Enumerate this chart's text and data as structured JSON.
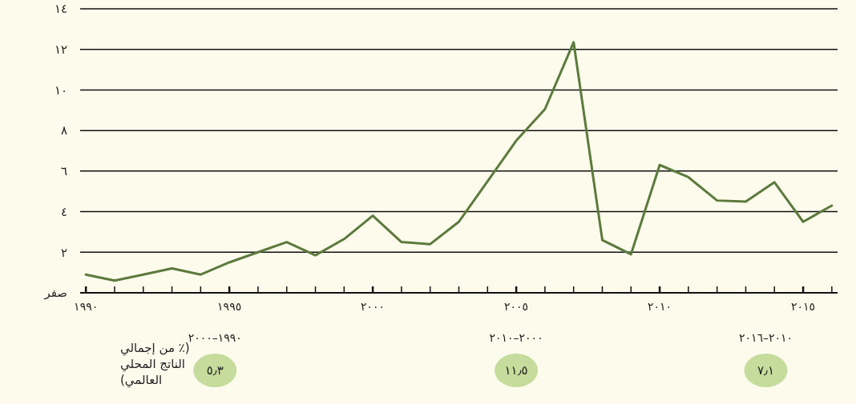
{
  "chart_data": {
    "type": "line",
    "x": [
      1990,
      1991,
      1992,
      1993,
      1994,
      1995,
      1996,
      1997,
      1998,
      1999,
      2000,
      2001,
      2002,
      2003,
      2004,
      2005,
      2006,
      2007,
      2008,
      2009,
      2010,
      2011,
      2012,
      2013,
      2014,
      2015,
      2016
    ],
    "series": [
      {
        "color": "#5b7a3c",
        "values": [
          0.9,
          0.6,
          0.9,
          1.2,
          0.9,
          1.5,
          2.0,
          2.5,
          1.85,
          2.65,
          3.8,
          2.5,
          2.4,
          3.5,
          5.5,
          7.5,
          9.05,
          12.35,
          2.6,
          1.9,
          6.3,
          5.7,
          4.55,
          4.5,
          5.45,
          3.5,
          4.3
        ]
      }
    ],
    "xlim": [
      1989.8,
      2016.2
    ],
    "xticks": [
      {
        "value": 1990,
        "label": "١٩٩٠"
      },
      {
        "value": 1991,
        "label": null
      },
      {
        "value": 1992,
        "label": null
      },
      {
        "value": 1993,
        "label": null
      },
      {
        "value": 1994,
        "label": null
      },
      {
        "value": 1995,
        "label": "١٩٩٥"
      },
      {
        "value": 1996,
        "label": null
      },
      {
        "value": 1997,
        "label": null
      },
      {
        "value": 1998,
        "label": null
      },
      {
        "value": 1999,
        "label": null
      },
      {
        "value": 2000,
        "label": "٢٠٠٠"
      },
      {
        "value": 2001,
        "label": null
      },
      {
        "value": 2002,
        "label": null
      },
      {
        "value": 2003,
        "label": null
      },
      {
        "value": 2004,
        "label": null
      },
      {
        "value": 2005,
        "label": "٢٠٠٥"
      },
      {
        "value": 2006,
        "label": null
      },
      {
        "value": 2007,
        "label": null
      },
      {
        "value": 2008,
        "label": null
      },
      {
        "value": 2009,
        "label": null
      },
      {
        "value": 2010,
        "label": "٢٠١٠"
      },
      {
        "value": 2011,
        "label": null
      },
      {
        "value": 2012,
        "label": null
      },
      {
        "value": 2013,
        "label": null
      },
      {
        "value": 2014,
        "label": null
      },
      {
        "value": 2015,
        "label": "٢٠١٥"
      },
      {
        "value": 2016,
        "label": null
      }
    ],
    "ylim": [
      0,
      14
    ],
    "yticks": [
      {
        "value": 0,
        "label": "صفر"
      },
      {
        "value": 2,
        "label": "٢"
      },
      {
        "value": 4,
        "label": "٤"
      },
      {
        "value": 6,
        "label": "٦"
      },
      {
        "value": 8,
        "label": "٨"
      },
      {
        "value": 10,
        "label": "١٠"
      },
      {
        "value": 12,
        "label": "١٢"
      },
      {
        "value": 14,
        "label": "١٤"
      }
    ],
    "grid": "y",
    "annotations": [
      "(٪ من إجمالي الناتج المحلي العالمي)",
      "٢٠٠٠–١٩٩٠",
      "٥٫٣",
      "٢٠١٠–٢٠٠٠",
      "١١٫٥",
      "٢٠١٦–٢٠١٠",
      "٧٫١"
    ],
    "marker": "none",
    "line_style": "solid"
  }
}
